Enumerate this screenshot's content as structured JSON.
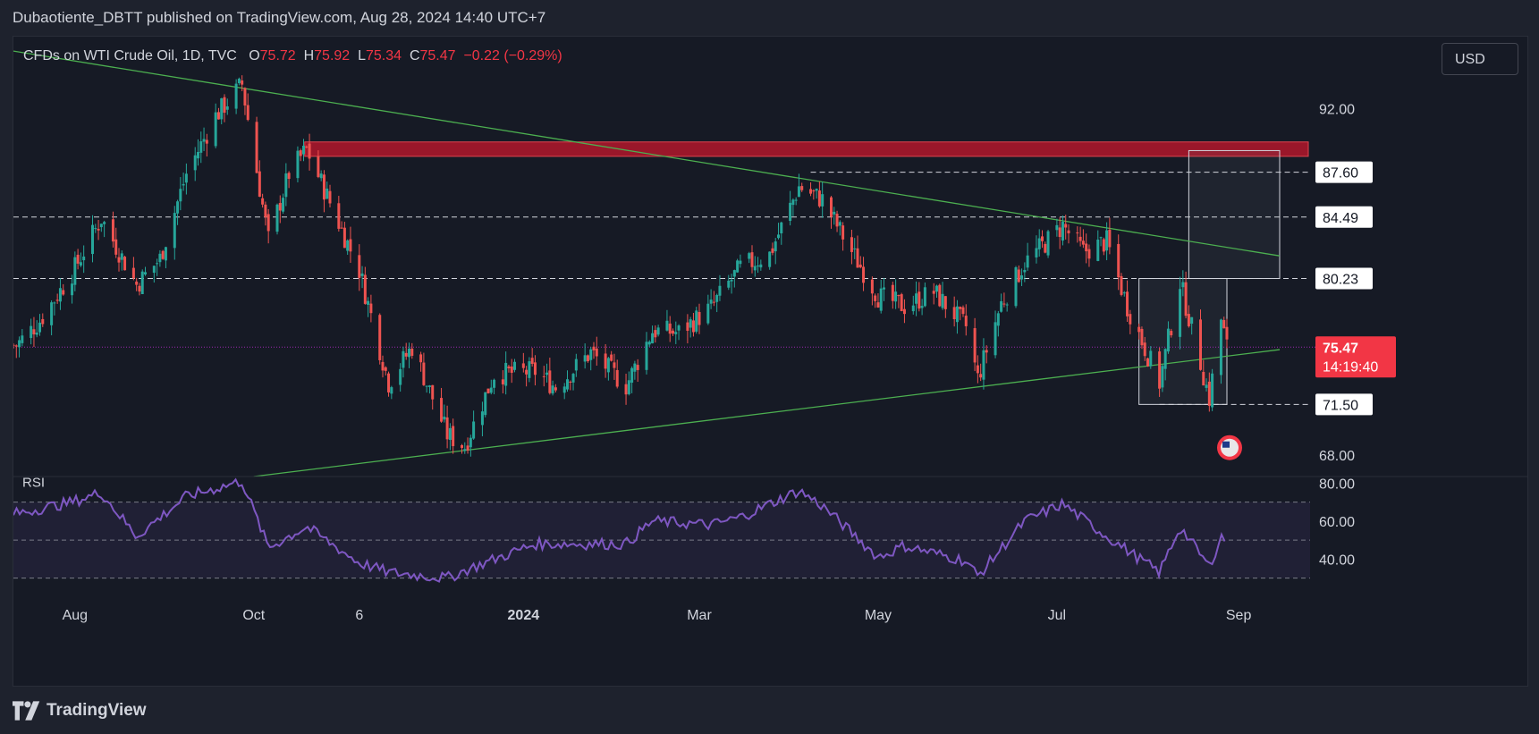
{
  "header": {
    "publisher": "Dubaotiente_DBTT published on TradingView.com, Aug 28, 2024 14:40 UTC+7"
  },
  "legend": {
    "symbol": "CFDs on WTI Crude Oil, 1D, TVC",
    "o_label": "O",
    "o_value": "75.72",
    "h_label": "H",
    "h_value": "75.92",
    "l_label": "L",
    "l_value": "75.34",
    "c_label": "C",
    "c_value": "75.47",
    "change": "−0.22 (−0.29%)"
  },
  "currency_button": "USD",
  "footer": {
    "brand": "TradingView"
  },
  "colors": {
    "up": "#26a69a",
    "down": "#ef5350",
    "rsi": "#7e57c2",
    "trend": "#4caf50",
    "zone": "#b2182b",
    "price_tag": "#f23645"
  },
  "chart_data": {
    "type": "candlestick",
    "ylim": [
      66.5,
      97
    ],
    "price_ticks": [
      "92.00",
      "68.00"
    ],
    "level_labels": [
      "87.60",
      "84.49",
      "80.23",
      "71.50"
    ],
    "last_price": "75.47",
    "countdown": "14:19:40",
    "x_labels": [
      "Aug",
      "Oct",
      "6",
      "2024",
      "Mar",
      "May",
      "Jul",
      "Sep"
    ],
    "resistance_zone": [
      88.7,
      89.7
    ],
    "horizontal_levels": [
      87.6,
      84.49,
      80.23,
      71.5
    ],
    "trendlines": [
      {
        "name": "descending",
        "from": {
          "date": "2023-07-11",
          "price": 96.0
        },
        "to": {
          "date": "2024-09-15",
          "price": 81.8
        }
      },
      {
        "name": "ascending",
        "from": {
          "date": "2023-10-01",
          "price": 66.5
        },
        "to": {
          "date": "2024-09-15",
          "price": 75.3
        }
      }
    ],
    "closes_approx": [
      {
        "date": "2023-07-12",
        "close": 75.6
      },
      {
        "date": "2023-07-20",
        "close": 77.3
      },
      {
        "date": "2023-07-31",
        "close": 80.6
      },
      {
        "date": "2023-08-10",
        "close": 84.4
      },
      {
        "date": "2023-08-22",
        "close": 79.8
      },
      {
        "date": "2023-08-30",
        "close": 81.6
      },
      {
        "date": "2023-09-08",
        "close": 87.5
      },
      {
        "date": "2023-09-18",
        "close": 91.5
      },
      {
        "date": "2023-09-27",
        "close": 93.7
      },
      {
        "date": "2023-10-06",
        "close": 82.9
      },
      {
        "date": "2023-10-13",
        "close": 87.5
      },
      {
        "date": "2023-10-19",
        "close": 89.2
      },
      {
        "date": "2023-10-27",
        "close": 85.5
      },
      {
        "date": "2023-11-06",
        "close": 80.8
      },
      {
        "date": "2023-11-16",
        "close": 73.0
      },
      {
        "date": "2023-11-24",
        "close": 75.5
      },
      {
        "date": "2023-12-06",
        "close": 69.4
      },
      {
        "date": "2023-12-12",
        "close": 68.6
      },
      {
        "date": "2023-12-22",
        "close": 73.6
      },
      {
        "date": "2024-01-05",
        "close": 73.8
      },
      {
        "date": "2024-01-12",
        "close": 72.7
      },
      {
        "date": "2024-01-24",
        "close": 75.1
      },
      {
        "date": "2024-02-05",
        "close": 72.8
      },
      {
        "date": "2024-02-14",
        "close": 76.6
      },
      {
        "date": "2024-02-23",
        "close": 76.5
      },
      {
        "date": "2024-03-05",
        "close": 78.2
      },
      {
        "date": "2024-03-15",
        "close": 81.0
      },
      {
        "date": "2024-03-25",
        "close": 81.9
      },
      {
        "date": "2024-04-04",
        "close": 86.6
      },
      {
        "date": "2024-04-12",
        "close": 85.7
      },
      {
        "date": "2024-04-22",
        "close": 82.1
      },
      {
        "date": "2024-05-01",
        "close": 79.0
      },
      {
        "date": "2024-05-10",
        "close": 78.3
      },
      {
        "date": "2024-05-20",
        "close": 79.3
      },
      {
        "date": "2024-05-31",
        "close": 76.9
      },
      {
        "date": "2024-06-04",
        "close": 73.3
      },
      {
        "date": "2024-06-12",
        "close": 78.5
      },
      {
        "date": "2024-06-20",
        "close": 81.3
      },
      {
        "date": "2024-07-03",
        "close": 83.9
      },
      {
        "date": "2024-07-10",
        "close": 82.1
      },
      {
        "date": "2024-07-18",
        "close": 82.8
      },
      {
        "date": "2024-07-25",
        "close": 78.3
      },
      {
        "date": "2024-08-05",
        "close": 73.0
      },
      {
        "date": "2024-08-12",
        "close": 80.0
      },
      {
        "date": "2024-08-19",
        "close": 74.4
      },
      {
        "date": "2024-08-22",
        "close": 71.9
      },
      {
        "date": "2024-08-26",
        "close": 77.4
      },
      {
        "date": "2024-08-28",
        "close": 75.47
      }
    ],
    "rsi": {
      "label": "RSI",
      "ticks": [
        "80.00",
        "60.00",
        "40.00"
      ],
      "ylim": [
        27,
        83
      ],
      "band": [
        30,
        70
      ],
      "midline": 50,
      "values_approx": [
        {
          "date": "2023-07-12",
          "rsi": 64
        },
        {
          "date": "2023-07-31",
          "rsi": 70
        },
        {
          "date": "2023-08-10",
          "rsi": 75
        },
        {
          "date": "2023-08-22",
          "rsi": 52
        },
        {
          "date": "2023-09-08",
          "rsi": 73
        },
        {
          "date": "2023-09-27",
          "rsi": 81
        },
        {
          "date": "2023-10-06",
          "rsi": 46
        },
        {
          "date": "2023-10-19",
          "rsi": 57
        },
        {
          "date": "2023-11-06",
          "rsi": 38
        },
        {
          "date": "2023-11-16",
          "rsi": 33
        },
        {
          "date": "2023-12-06",
          "rsi": 30
        },
        {
          "date": "2023-12-12",
          "rsi": 34
        },
        {
          "date": "2024-01-05",
          "rsi": 48
        },
        {
          "date": "2024-02-05",
          "rsi": 48
        },
        {
          "date": "2024-02-14",
          "rsi": 60
        },
        {
          "date": "2024-03-05",
          "rsi": 58
        },
        {
          "date": "2024-03-15",
          "rsi": 62
        },
        {
          "date": "2024-04-04",
          "rsi": 76
        },
        {
          "date": "2024-04-12",
          "rsi": 68
        },
        {
          "date": "2024-05-01",
          "rsi": 41
        },
        {
          "date": "2024-05-10",
          "rsi": 47
        },
        {
          "date": "2024-05-31",
          "rsi": 39
        },
        {
          "date": "2024-06-04",
          "rsi": 31
        },
        {
          "date": "2024-06-20",
          "rsi": 60
        },
        {
          "date": "2024-07-03",
          "rsi": 69
        },
        {
          "date": "2024-07-18",
          "rsi": 52
        },
        {
          "date": "2024-08-05",
          "rsi": 33
        },
        {
          "date": "2024-08-12",
          "rsi": 57
        },
        {
          "date": "2024-08-22",
          "rsi": 36
        },
        {
          "date": "2024-08-26",
          "rsi": 52
        },
        {
          "date": "2024-08-28",
          "rsi": 49
        }
      ]
    },
    "boxes": [
      {
        "name": "right-range-box",
        "from_date": "2024-08-15",
        "to_date": "2024-09-15",
        "low": 80.23,
        "high": 89.1
      },
      {
        "name": "consolidation-box",
        "from_date": "2024-07-29",
        "to_date": "2024-08-28",
        "low": 71.5,
        "high": 80.23
      }
    ]
  }
}
